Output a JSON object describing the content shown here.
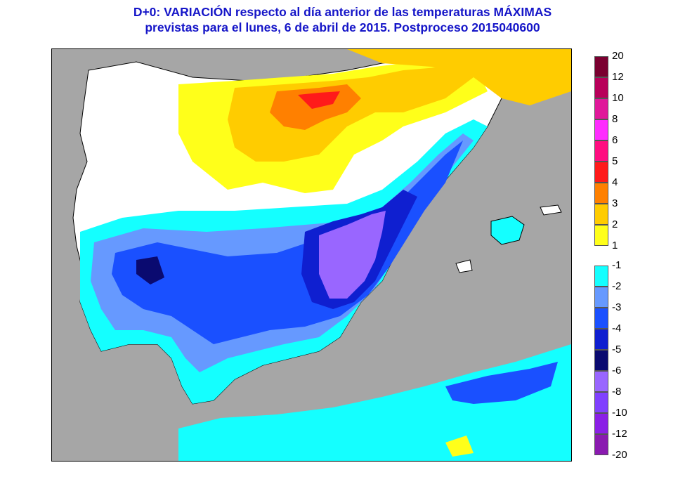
{
  "title": {
    "line1": "D+0:  VARIACIÓN respecto al día anterior de las temperaturas MÁXIMAS",
    "line2": "previstas para el lunes, 6 de abril de 2015. Postproceso 2015040600"
  },
  "colors": {
    "sea": "#a6a6a6",
    "land_neutral": "#ffffff",
    "border_line": "#000000"
  },
  "legend": {
    "warm": [
      {
        "label": "20",
        "color": "#7a0030"
      },
      {
        "label": "12",
        "color": "#b8005a"
      },
      {
        "label": "10",
        "color": "#e0189a"
      },
      {
        "label": "8",
        "color": "#ff2cff"
      },
      {
        "label": "6",
        "color": "#ff0d80"
      },
      {
        "label": "5",
        "color": "#ff1a1a"
      },
      {
        "label": "4",
        "color": "#ff8000"
      },
      {
        "label": "3",
        "color": "#ffcc00"
      },
      {
        "label": "2",
        "color": "#ffff1a"
      },
      {
        "label": "1",
        "color": ""
      }
    ],
    "cold": [
      {
        "label": "-1",
        "color": "#14ffff"
      },
      {
        "label": "-2",
        "color": "#6699ff"
      },
      {
        "label": "-3",
        "color": "#1a50ff"
      },
      {
        "label": "-4",
        "color": "#0f1fd0"
      },
      {
        "label": "-5",
        "color": "#0a0a70"
      },
      {
        "label": "-6",
        "color": "#9966ff"
      },
      {
        "label": "-8",
        "color": "#8040ff"
      },
      {
        "label": "-10",
        "color": "#8a1fe6"
      },
      {
        "label": "-12",
        "color": "#8a1ab0"
      },
      {
        "label": "-20",
        "color": ""
      }
    ]
  }
}
